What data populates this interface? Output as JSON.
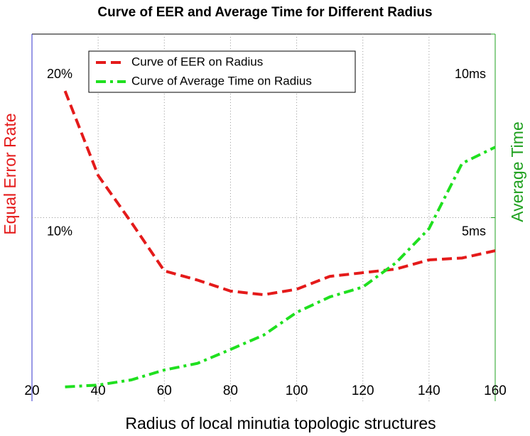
{
  "chart_data": {
    "type": "line",
    "title": "Curve of EER and Average Time for Different Radius",
    "x_label": "Radius of local minutia topologic structures",
    "y_label": "Equal Error Rate",
    "y2_label": "Average Time",
    "x": [
      30,
      40,
      50,
      60,
      70,
      80,
      90,
      100,
      110,
      120,
      130,
      140,
      150,
      160
    ],
    "series": [
      {
        "name": "Curve of EER on Radius",
        "color": "#e41a1a",
        "linestyle": "dashed",
        "values": [
          16.9,
          12.3,
          9.75,
          7.1,
          6.6,
          6.0,
          5.8,
          6.1,
          6.8,
          7.0,
          7.2,
          7.7,
          7.8,
          8.2
        ]
      },
      {
        "name": "Curve of Average Time on Radius",
        "color": "#1fe01f",
        "linestyle": "dashdot",
        "axis": "y2",
        "values": [
          0.39,
          0.44,
          0.58,
          0.85,
          1.03,
          1.41,
          1.8,
          2.42,
          2.84,
          3.11,
          3.77,
          4.7,
          6.48,
          6.92
        ]
      }
    ],
    "xlim": [
      20,
      160
    ],
    "xticks": [
      20,
      40,
      60,
      80,
      100,
      120,
      140,
      160
    ],
    "ylim": [
      0,
      20
    ],
    "yticks": [
      {
        "value": 10,
        "label": "10%"
      },
      {
        "value": 20,
        "label": "20%"
      }
    ],
    "y2lim": [
      0,
      10
    ],
    "y2ticks": [
      {
        "value": 5,
        "label": "5ms"
      },
      {
        "value": 10,
        "label": "10ms"
      }
    ],
    "grid": true,
    "legend": "upper left"
  }
}
